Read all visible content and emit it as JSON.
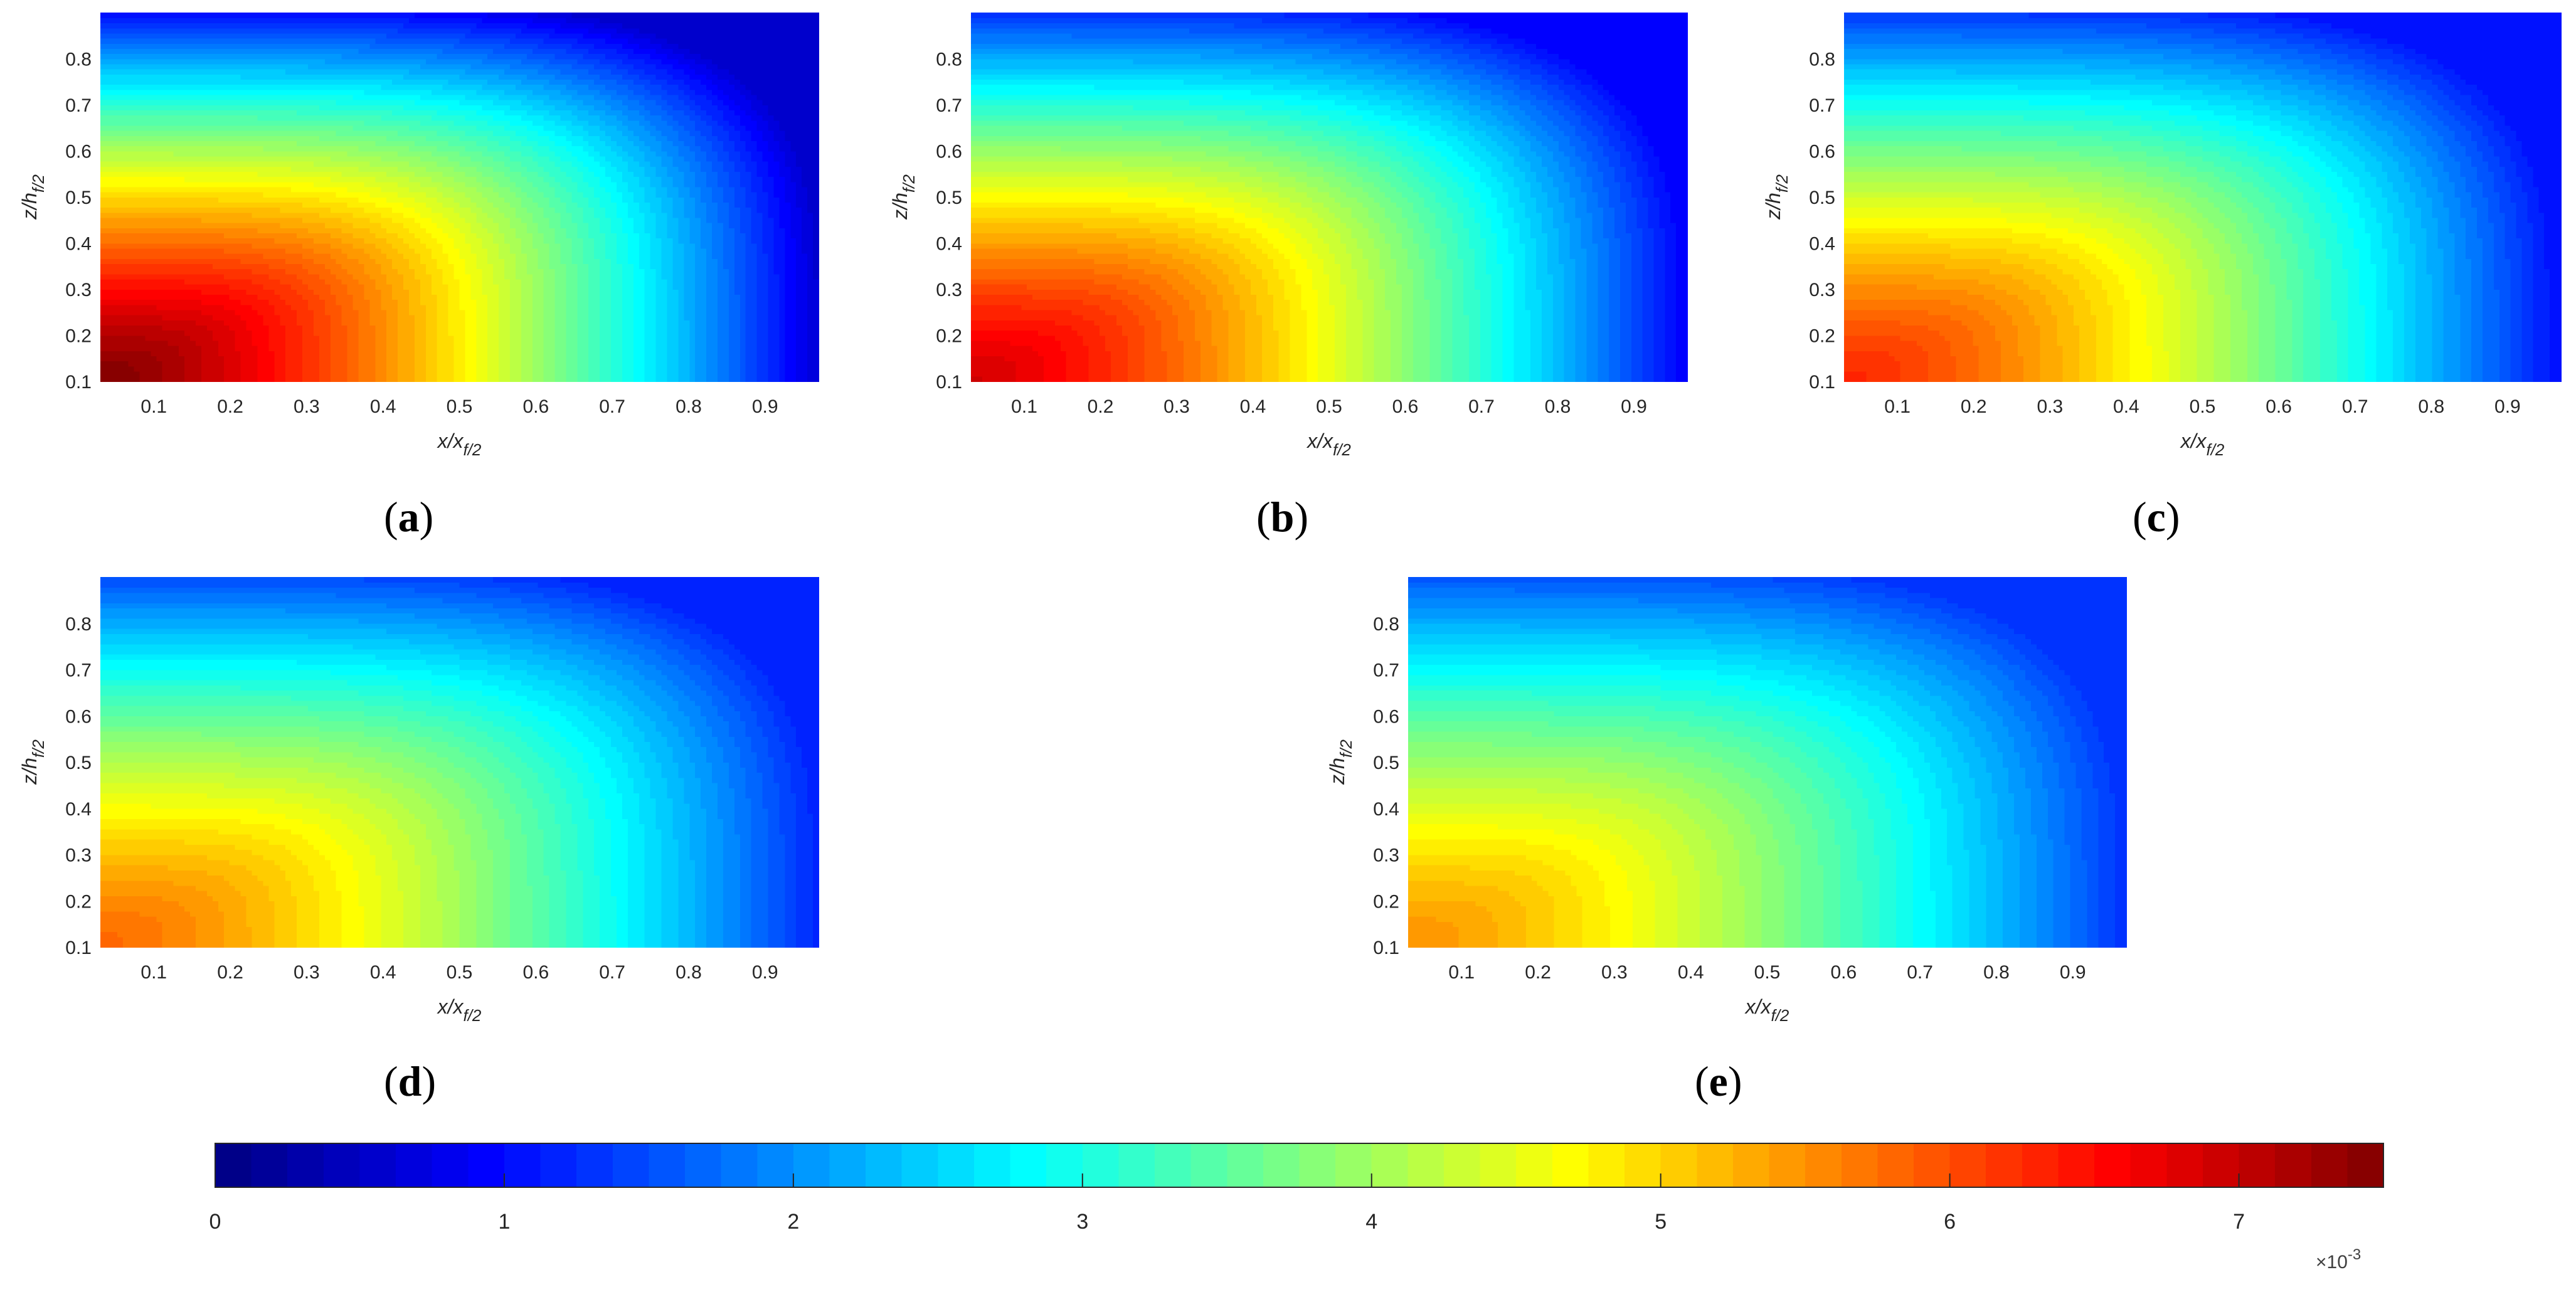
{
  "figure": {
    "panels": [
      {
        "label": "a",
        "open": "(",
        "close": ")"
      },
      {
        "label": "b",
        "open": "(",
        "close": ")"
      },
      {
        "label": "c",
        "open": "(",
        "close": ")"
      },
      {
        "label": "d",
        "open": "(",
        "close": ")"
      },
      {
        "label": "e",
        "open": "(",
        "close": ")"
      }
    ],
    "colorbar": {
      "colormap": "jet",
      "range": [
        0,
        7.5
      ],
      "ticks": [
        "0",
        "1",
        "2",
        "3",
        "4",
        "5",
        "6",
        "7"
      ],
      "exponent_base": "×10",
      "exponent_power": "-3",
      "levels": 60
    }
  },
  "chart_data": [
    {
      "type": "heatmap",
      "panel": "a",
      "xlabel": "x/x",
      "xlabel_sub": "f/2",
      "ylabel": "z/h",
      "ylabel_sub": "f/2",
      "x_ticks": [
        0.1,
        0.2,
        0.3,
        0.4,
        0.5,
        0.6,
        0.7,
        0.8,
        0.9
      ],
      "y_ticks": [
        0.1,
        0.2,
        0.3,
        0.4,
        0.5,
        0.6,
        0.7,
        0.8
      ],
      "xlim": [
        0.03,
        0.97
      ],
      "ylim": [
        0.1,
        0.9
      ],
      "max_value": 7.5,
      "min_value": 0.6
    },
    {
      "type": "heatmap",
      "panel": "b",
      "xlabel": "x/x",
      "xlabel_sub": "f/2",
      "ylabel": "z/h",
      "ylabel_sub": "f/2",
      "x_ticks": [
        0.1,
        0.2,
        0.3,
        0.4,
        0.5,
        0.6,
        0.7,
        0.8,
        0.9
      ],
      "y_ticks": [
        0.1,
        0.2,
        0.3,
        0.4,
        0.5,
        0.6,
        0.7,
        0.8
      ],
      "xlim": [
        0.03,
        0.97
      ],
      "ylim": [
        0.1,
        0.9
      ],
      "max_value": 6.9,
      "min_value": 0.9
    },
    {
      "type": "heatmap",
      "panel": "c",
      "xlabel": "x/x",
      "xlabel_sub": "f/2",
      "ylabel": "z/h",
      "ylabel_sub": "f/2",
      "x_ticks": [
        0.1,
        0.2,
        0.3,
        0.4,
        0.5,
        0.6,
        0.7,
        0.8,
        0.9
      ],
      "y_ticks": [
        0.1,
        0.2,
        0.3,
        0.4,
        0.5,
        0.6,
        0.7,
        0.8
      ],
      "xlim": [
        0.03,
        0.97
      ],
      "ylim": [
        0.1,
        0.9
      ],
      "max_value": 6.3,
      "min_value": 1.0
    },
    {
      "type": "heatmap",
      "panel": "d",
      "xlabel": "x/x",
      "xlabel_sub": "f/2",
      "ylabel": "z/h",
      "ylabel_sub": "f/2",
      "x_ticks": [
        0.1,
        0.2,
        0.3,
        0.4,
        0.5,
        0.6,
        0.7,
        0.8,
        0.9
      ],
      "y_ticks": [
        0.1,
        0.2,
        0.3,
        0.4,
        0.5,
        0.6,
        0.7,
        0.8
      ],
      "xlim": [
        0.03,
        0.97
      ],
      "ylim": [
        0.1,
        0.9
      ],
      "max_value": 5.8,
      "min_value": 1.2
    },
    {
      "type": "heatmap",
      "panel": "e",
      "xlabel": "x/x",
      "xlabel_sub": "f/2",
      "ylabel": "z/h",
      "ylabel_sub": "f/2",
      "x_ticks": [
        0.1,
        0.2,
        0.3,
        0.4,
        0.5,
        0.6,
        0.7,
        0.8,
        0.9
      ],
      "y_ticks": [
        0.1,
        0.2,
        0.3,
        0.4,
        0.5,
        0.6,
        0.7,
        0.8
      ],
      "xlim": [
        0.03,
        0.97
      ],
      "ylim": [
        0.1,
        0.9
      ],
      "max_value": 5.5,
      "min_value": 1.3
    }
  ]
}
